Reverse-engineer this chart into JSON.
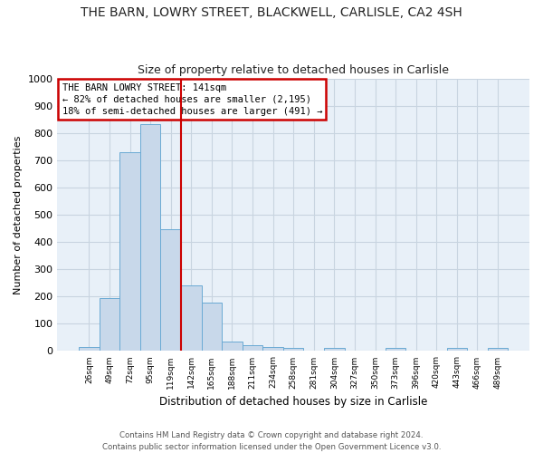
{
  "title": "THE BARN, LOWRY STREET, BLACKWELL, CARLISLE, CA2 4SH",
  "subtitle": "Size of property relative to detached houses in Carlisle",
  "xlabel": "Distribution of detached houses by size in Carlisle",
  "ylabel": "Number of detached properties",
  "bar_values": [
    15,
    195,
    730,
    835,
    448,
    242,
    178,
    35,
    20,
    15,
    10,
    0,
    10,
    0,
    0,
    10,
    0,
    0,
    10,
    0,
    10
  ],
  "bar_labels": [
    "26sqm",
    "49sqm",
    "72sqm",
    "95sqm",
    "119sqm",
    "142sqm",
    "165sqm",
    "188sqm",
    "211sqm",
    "234sqm",
    "258sqm",
    "281sqm",
    "304sqm",
    "327sqm",
    "350sqm",
    "373sqm",
    "396sqm",
    "420sqm",
    "443sqm",
    "466sqm",
    "489sqm"
  ],
  "bar_color": "#c8d8ea",
  "bar_edge_color": "#6aaad4",
  "grid_color": "#c8d4e0",
  "vline_x": 4.5,
  "vline_color": "#cc0000",
  "annotation_text": "THE BARN LOWRY STREET: 141sqm\n← 82% of detached houses are smaller (2,195)\n18% of semi-detached houses are larger (491) →",
  "annotation_box_color": "#ffffff",
  "annotation_box_edge": "#cc0000",
  "ylim": [
    0,
    1000
  ],
  "yticks": [
    0,
    100,
    200,
    300,
    400,
    500,
    600,
    700,
    800,
    900,
    1000
  ],
  "footer": "Contains HM Land Registry data © Crown copyright and database right 2024.\nContains public sector information licensed under the Open Government Licence v3.0.",
  "background_color": "#e8f0f8",
  "fig_background": "#ffffff",
  "title_fontsize": 10,
  "subtitle_fontsize": 9
}
